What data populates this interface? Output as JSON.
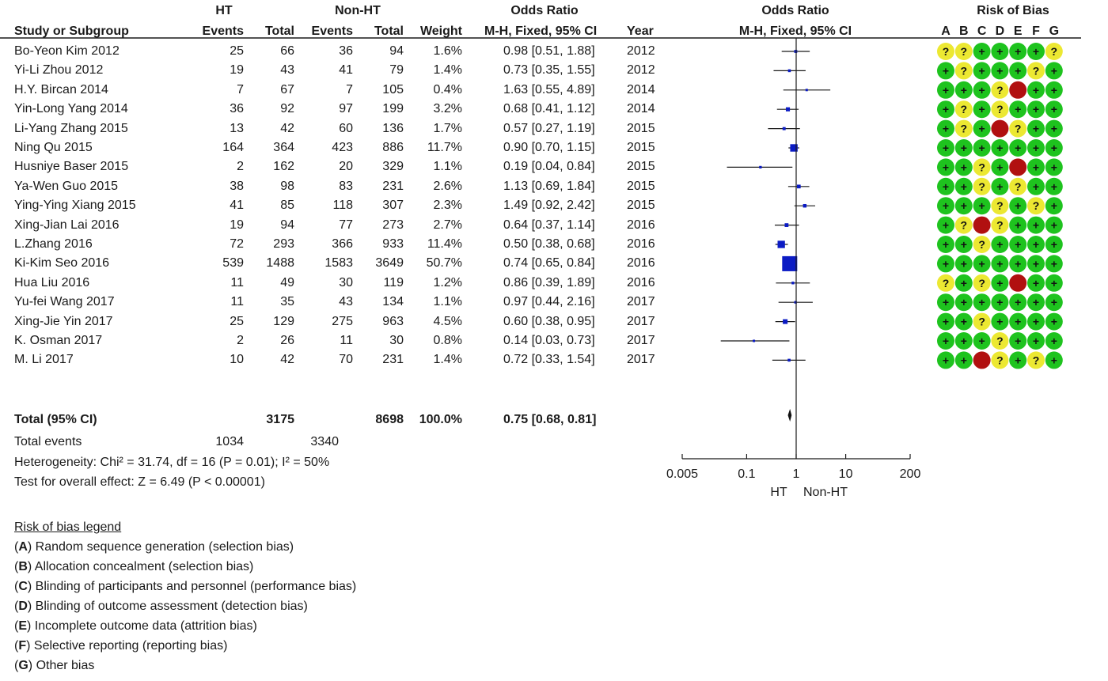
{
  "header": {
    "ht": "HT",
    "nonht": "Non-HT",
    "or": "Odds Ratio",
    "rob": "Risk of Bias",
    "study": "Study or Subgroup",
    "events": "Events",
    "total": "Total",
    "weight": "Weight",
    "method": "M-H, Fixed, 95% CI",
    "year": "Year",
    "plot_method": "M-H, Fixed, 95% CI",
    "rob_cols": [
      "A",
      "B",
      "C",
      "D",
      "E",
      "F",
      "G"
    ]
  },
  "total_row": {
    "label": "Total (95% CI)",
    "ht_total": "3175",
    "nonht_total": "8698",
    "weight": "100.0%",
    "ci": "0.75 [0.68, 0.81]"
  },
  "events_row": {
    "label": "Total events",
    "ht": "1034",
    "nonht": "3340"
  },
  "heterogeneity": "Heterogeneity: Chi² = 31.74, df = 16 (P = 0.01); I² = 50%",
  "overall": "Test for overall effect: Z = 6.49 (P < 0.00001)",
  "legend": {
    "title": "Risk of bias legend",
    "items": [
      {
        "key": "A",
        "text": "Random sequence generation (selection bias)"
      },
      {
        "key": "B",
        "text": "Allocation concealment (selection bias)"
      },
      {
        "key": "C",
        "text": "Blinding of participants and personnel (performance bias)"
      },
      {
        "key": "D",
        "text": "Blinding of outcome assessment (detection bias)"
      },
      {
        "key": "E",
        "text": "Incomplete outcome data (attrition bias)"
      },
      {
        "key": "F",
        "text": "Selective reporting (reporting bias)"
      },
      {
        "key": "G",
        "text": "Other bias"
      }
    ]
  },
  "axis": {
    "left_label": "HT",
    "right_label": "Non-HT"
  },
  "colors": {
    "low": "#1ec31e",
    "unclear": "#ece832",
    "high": "#b11010",
    "marker": "#0b1bc4"
  },
  "chart_data": {
    "type": "forest",
    "xscale": "log",
    "xlim": [
      0.005,
      200
    ],
    "xticks": [
      0.005,
      0.1,
      1,
      10,
      200
    ],
    "xtick_labels": [
      "0.005",
      "0.1",
      "1",
      "10",
      "200"
    ],
    "studies": [
      {
        "name": "Bo-Yeon Kim 2012",
        "ht_events": "25",
        "ht_total": "66",
        "nonht_events": "36",
        "nonht_total": "94",
        "weight": "1.6%",
        "ci": "0.98 [0.51, 1.88]",
        "year": "2012",
        "or": 0.98,
        "lo": 0.51,
        "hi": 1.88,
        "w": 1.6,
        "rob": [
          "?",
          "?",
          "+",
          "+",
          "+",
          "+",
          "?"
        ]
      },
      {
        "name": "Yi-Li Zhou 2012",
        "ht_events": "19",
        "ht_total": "43",
        "nonht_events": "41",
        "nonht_total": "79",
        "weight": "1.4%",
        "ci": "0.73 [0.35, 1.55]",
        "year": "2012",
        "or": 0.73,
        "lo": 0.35,
        "hi": 1.55,
        "w": 1.4,
        "rob": [
          "+",
          "?",
          "+",
          "+",
          "+",
          "?",
          "+"
        ]
      },
      {
        "name": "H.Y. Bircan 2014",
        "ht_events": "7",
        "ht_total": "67",
        "nonht_events": "7",
        "nonht_total": "105",
        "weight": "0.4%",
        "ci": "1.63 [0.55, 4.89]",
        "year": "2014",
        "or": 1.63,
        "lo": 0.55,
        "hi": 4.89,
        "w": 0.4,
        "rob": [
          "+",
          "+",
          "+",
          "?",
          "-",
          "+",
          "+"
        ]
      },
      {
        "name": "Yin-Long Yang 2014",
        "ht_events": "36",
        "ht_total": "92",
        "nonht_events": "97",
        "nonht_total": "199",
        "weight": "3.2%",
        "ci": "0.68 [0.41, 1.12]",
        "year": "2014",
        "or": 0.68,
        "lo": 0.41,
        "hi": 1.12,
        "w": 3.2,
        "rob": [
          "+",
          "?",
          "+",
          "?",
          "+",
          "+",
          "+"
        ]
      },
      {
        "name": "Li-Yang Zhang 2015",
        "ht_events": "13",
        "ht_total": "42",
        "nonht_events": "60",
        "nonht_total": "136",
        "weight": "1.7%",
        "ci": "0.57 [0.27, 1.19]",
        "year": "2015",
        "or": 0.57,
        "lo": 0.27,
        "hi": 1.19,
        "w": 1.7,
        "rob": [
          "+",
          "?",
          "+",
          "-",
          "?",
          "+",
          "+"
        ]
      },
      {
        "name": "Ning Qu 2015",
        "ht_events": "164",
        "ht_total": "364",
        "nonht_events": "423",
        "nonht_total": "886",
        "weight": "11.7%",
        "ci": "0.90 [0.70, 1.15]",
        "year": "2015",
        "or": 0.9,
        "lo": 0.7,
        "hi": 1.15,
        "w": 11.7,
        "rob": [
          "+",
          "+",
          "+",
          "+",
          "+",
          "+",
          "+"
        ]
      },
      {
        "name": "Husniye Baser 2015",
        "ht_events": "2",
        "ht_total": "162",
        "nonht_events": "20",
        "nonht_total": "329",
        "weight": "1.1%",
        "ci": "0.19 [0.04, 0.84]",
        "year": "2015",
        "or": 0.19,
        "lo": 0.04,
        "hi": 0.84,
        "w": 1.1,
        "rob": [
          "+",
          "+",
          "?",
          "+",
          "-",
          "+",
          "+"
        ]
      },
      {
        "name": "Ya-Wen Guo 2015",
        "ht_events": "38",
        "ht_total": "98",
        "nonht_events": "83",
        "nonht_total": "231",
        "weight": "2.6%",
        "ci": "1.13 [0.69, 1.84]",
        "year": "2015",
        "or": 1.13,
        "lo": 0.69,
        "hi": 1.84,
        "w": 2.6,
        "rob": [
          "+",
          "+",
          "?",
          "+",
          "?",
          "+",
          "+"
        ]
      },
      {
        "name": "Ying-Ying Xiang 2015",
        "ht_events": "41",
        "ht_total": "85",
        "nonht_events": "118",
        "nonht_total": "307",
        "weight": "2.3%",
        "ci": "1.49 [0.92, 2.42]",
        "year": "2015",
        "or": 1.49,
        "lo": 0.92,
        "hi": 2.42,
        "w": 2.3,
        "rob": [
          "+",
          "+",
          "+",
          "?",
          "+",
          "?",
          "+"
        ]
      },
      {
        "name": "Xing-Jian Lai 2016",
        "ht_events": "19",
        "ht_total": "94",
        "nonht_events": "77",
        "nonht_total": "273",
        "weight": "2.7%",
        "ci": "0.64 [0.37, 1.14]",
        "year": "2016",
        "or": 0.64,
        "lo": 0.37,
        "hi": 1.14,
        "w": 2.7,
        "rob": [
          "+",
          "?",
          "-",
          "?",
          "+",
          "+",
          "+"
        ]
      },
      {
        "name": "L.Zhang 2016",
        "ht_events": "72",
        "ht_total": "293",
        "nonht_events": "366",
        "nonht_total": "933",
        "weight": "11.4%",
        "ci": "0.50 [0.38, 0.68]",
        "year": "2016",
        "or": 0.5,
        "lo": 0.38,
        "hi": 0.68,
        "w": 11.4,
        "rob": [
          "+",
          "+",
          "?",
          "+",
          "+",
          "+",
          "+"
        ]
      },
      {
        "name": "Ki-Kim Seo 2016",
        "ht_events": "539",
        "ht_total": "1488",
        "nonht_events": "1583",
        "nonht_total": "3649",
        "weight": "50.7%",
        "ci": "0.74 [0.65, 0.84]",
        "year": "2016",
        "or": 0.74,
        "lo": 0.65,
        "hi": 0.84,
        "w": 50.7,
        "rob": [
          "+",
          "+",
          "+",
          "+",
          "+",
          "+",
          "+"
        ]
      },
      {
        "name": "Hua Liu 2016",
        "ht_events": "11",
        "ht_total": "49",
        "nonht_events": "30",
        "nonht_total": "119",
        "weight": "1.2%",
        "ci": "0.86 [0.39, 1.89]",
        "year": "2016",
        "or": 0.86,
        "lo": 0.39,
        "hi": 1.89,
        "w": 1.2,
        "rob": [
          "?",
          "+",
          "?",
          "+",
          "-",
          "+",
          "+"
        ]
      },
      {
        "name": "Yu-fei Wang 2017",
        "ht_events": "11",
        "ht_total": "35",
        "nonht_events": "43",
        "nonht_total": "134",
        "weight": "1.1%",
        "ci": "0.97 [0.44, 2.16]",
        "year": "2017",
        "or": 0.97,
        "lo": 0.44,
        "hi": 2.16,
        "w": 1.1,
        "rob": [
          "+",
          "+",
          "+",
          "+",
          "+",
          "+",
          "+"
        ]
      },
      {
        "name": "Xing-Jie Yin 2017",
        "ht_events": "25",
        "ht_total": "129",
        "nonht_events": "275",
        "nonht_total": "963",
        "weight": "4.5%",
        "ci": "0.60 [0.38, 0.95]",
        "year": "2017",
        "or": 0.6,
        "lo": 0.38,
        "hi": 0.95,
        "w": 4.5,
        "rob": [
          "+",
          "+",
          "?",
          "+",
          "+",
          "+",
          "+"
        ]
      },
      {
        "name": "K. Osman 2017",
        "ht_events": "2",
        "ht_total": "26",
        "nonht_events": "11",
        "nonht_total": "30",
        "weight": "0.8%",
        "ci": "0.14 [0.03, 0.73]",
        "year": "2017",
        "or": 0.14,
        "lo": 0.03,
        "hi": 0.73,
        "w": 0.8,
        "rob": [
          "+",
          "+",
          "+",
          "?",
          "+",
          "+",
          "+"
        ]
      },
      {
        "name": "M. Li 2017",
        "ht_events": "10",
        "ht_total": "42",
        "nonht_events": "70",
        "nonht_total": "231",
        "weight": "1.4%",
        "ci": "0.72 [0.33, 1.54]",
        "year": "2017",
        "or": 0.72,
        "lo": 0.33,
        "hi": 1.54,
        "w": 1.4,
        "rob": [
          "+",
          "+",
          "-",
          "?",
          "+",
          "?",
          "+"
        ]
      }
    ],
    "pooled": {
      "or": 0.75,
      "lo": 0.68,
      "hi": 0.81
    }
  }
}
